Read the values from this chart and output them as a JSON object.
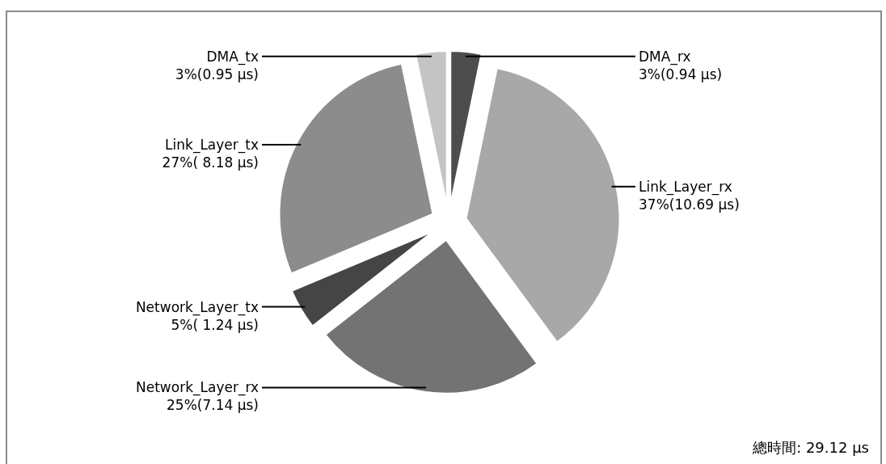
{
  "chart_data": {
    "type": "pie",
    "categories": [
      "DMA_rx",
      "Link_Layer_rx",
      "Network_Layer_rx",
      "Network_Layer_tx",
      "Link_Layer_tx",
      "DMA_tx"
    ],
    "values": [
      0.94,
      10.69,
      7.14,
      1.24,
      8.18,
      0.95
    ],
    "colors": [
      "#4d4d4d",
      "#a8a8a8",
      "#737373",
      "#454545",
      "#8c8c8c",
      "#c4c4c4"
    ],
    "value_labels": [
      "3%(0.94 µs)",
      "37%(10.69 µs)",
      "25%(7.14 µs)",
      "5%( 1.24 µs)",
      "27%( 8.18 µs)",
      "3%(0.95 µs)"
    ],
    "annotations": [
      "總時間: 29.12 µs"
    ]
  }
}
